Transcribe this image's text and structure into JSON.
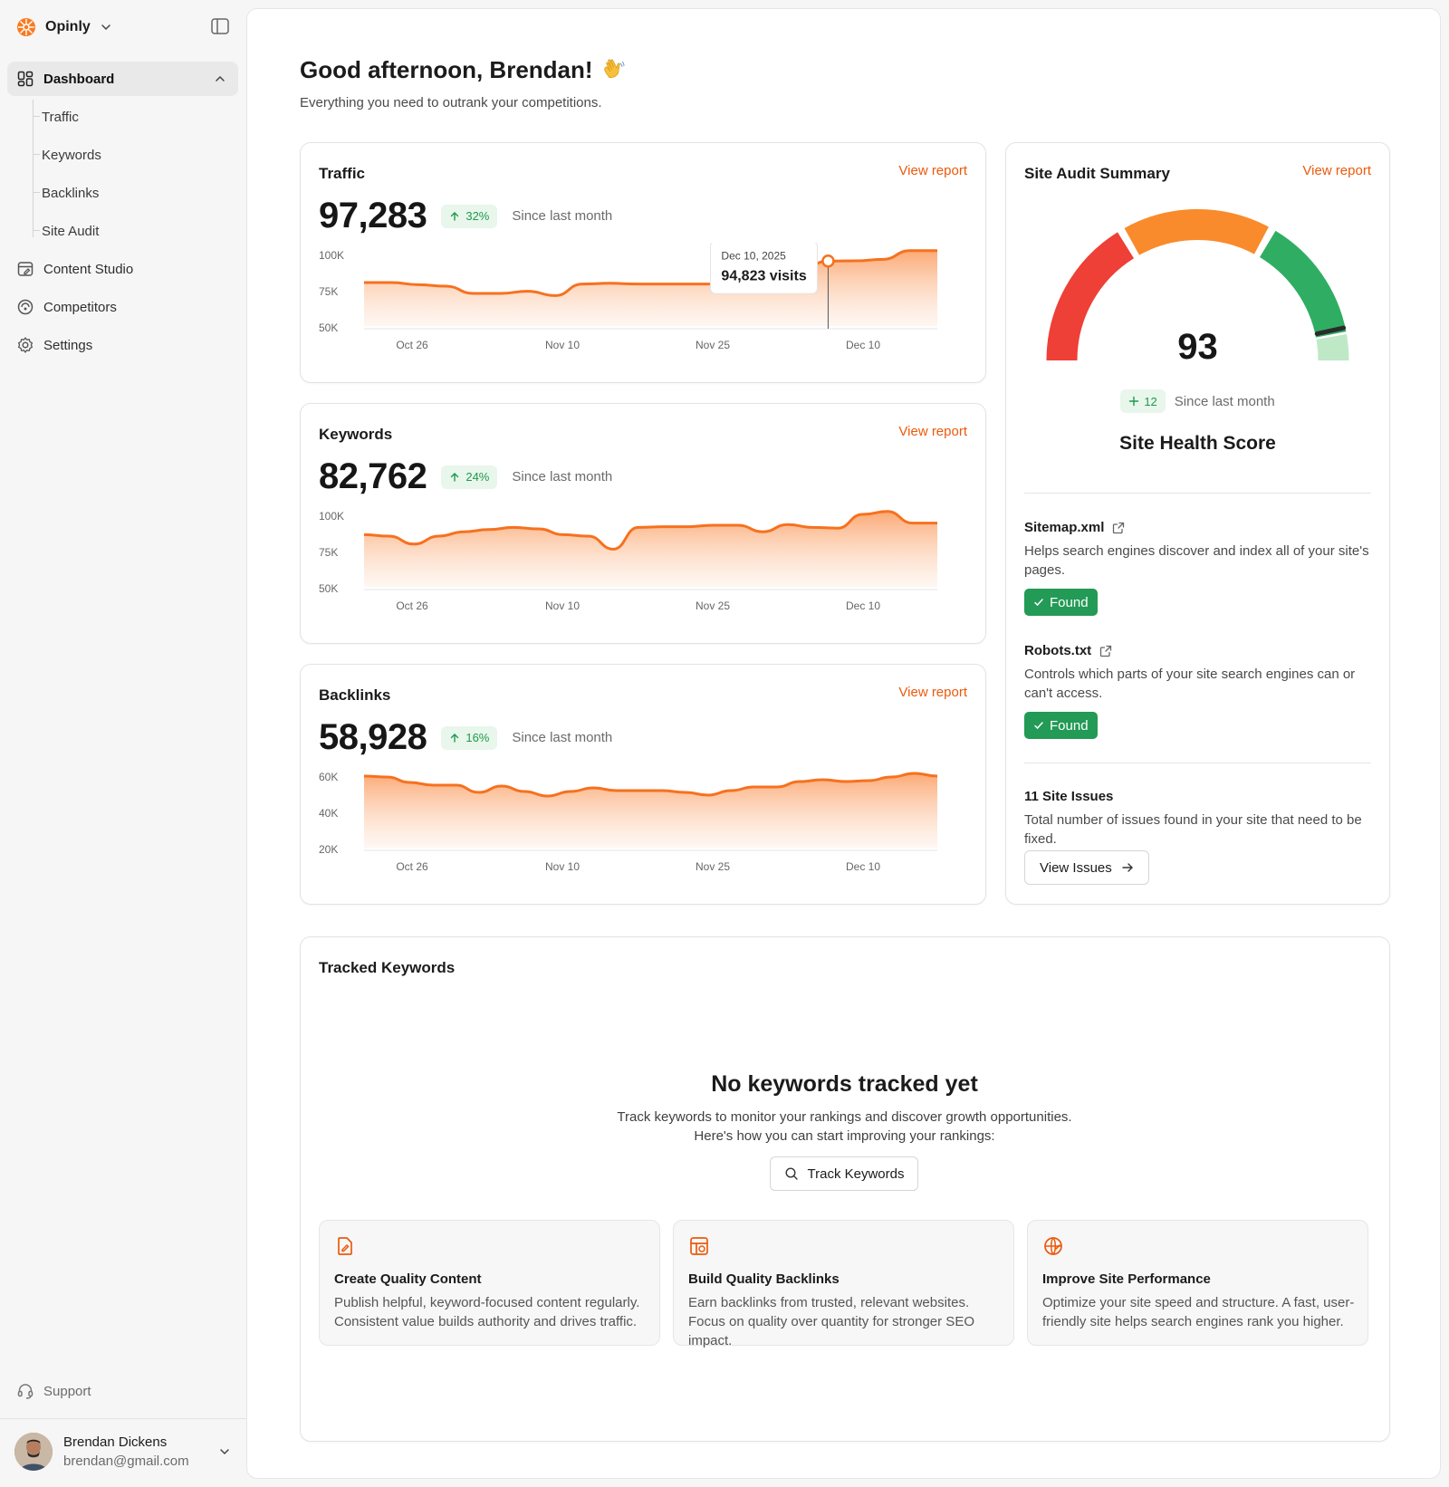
{
  "app": {
    "name": "Opinly"
  },
  "sidebar": {
    "dashboard_label": "Dashboard",
    "sub_items": [
      "Traffic",
      "Keywords",
      "Backlinks",
      "Site Audit"
    ],
    "items": [
      {
        "label": "Content Studio",
        "icon": "content-studio-icon"
      },
      {
        "label": "Competitors",
        "icon": "competitors-icon"
      },
      {
        "label": "Settings",
        "icon": "gear-icon"
      }
    ],
    "support_label": "Support"
  },
  "user": {
    "name": "Brendan Dickens",
    "email": "brendan@gmail.com"
  },
  "header": {
    "greeting": "Good afternoon, Brendan!",
    "subtitle": "Everything you need to outrank your competitions."
  },
  "metrics": {
    "view_report_label": "View report",
    "since_label": "Since last month",
    "traffic": {
      "title": "Traffic",
      "value": "97,283",
      "change": "32%"
    },
    "keywords": {
      "title": "Keywords",
      "value": "82,762",
      "change": "24%"
    },
    "backlinks": {
      "title": "Backlinks",
      "value": "58,928",
      "change": "16%"
    }
  },
  "chart_data": [
    {
      "name": "traffic",
      "type": "area",
      "x": [
        "Oct 26",
        "Nov 10",
        "Nov 25",
        "Dec 10"
      ],
      "ylim": [
        50000,
        100000
      ],
      "yticks": [
        "100K",
        "75K",
        "50K"
      ],
      "series_values": [
        80000,
        80000,
        78500,
        77500,
        72500,
        72500,
        74000,
        71000,
        79000,
        79500,
        79000,
        79000,
        79000,
        79000,
        92000,
        90500,
        89500,
        94823,
        95000,
        96000,
        102000,
        102000
      ],
      "tooltip": {
        "date": "Dec 10, 2025",
        "value": "94,823 visits"
      },
      "highlight_index": 17
    },
    {
      "name": "keywords",
      "type": "area",
      "x": [
        "Oct 26",
        "Nov 10",
        "Nov 25",
        "Dec 10"
      ],
      "ylim": [
        50000,
        100000
      ],
      "yticks": [
        "100K",
        "75K",
        "50K"
      ],
      "series_values": [
        86000,
        85000,
        79500,
        85000,
        88000,
        89500,
        91000,
        90000,
        86000,
        85000,
        76000,
        91000,
        91500,
        91500,
        92500,
        92500,
        88000,
        93000,
        91000,
        90500,
        100000,
        102000,
        94000,
        94000
      ]
    },
    {
      "name": "backlinks",
      "type": "area",
      "x": [
        "Oct 26",
        "Nov 10",
        "Nov 25",
        "Dec 10"
      ],
      "ylim": [
        20000,
        60000
      ],
      "yticks": [
        "60K",
        "40K",
        "20K"
      ],
      "series_values": [
        59500,
        59000,
        56000,
        54500,
        54500,
        50500,
        54000,
        51000,
        48500,
        51000,
        53000,
        51500,
        51500,
        51500,
        50500,
        49000,
        51500,
        53500,
        53500,
        56500,
        57500,
        56500,
        57000,
        59000,
        61000,
        59500
      ]
    }
  ],
  "audit": {
    "title": "Site Audit Summary",
    "view_report_label": "View report",
    "score": "93",
    "score_fraction": 0.93,
    "change": "12",
    "since_label": "Since last month",
    "health_label": "Site Health Score",
    "colors": {
      "red": "#ee4036",
      "orange": "#f98b2c",
      "green": "#2fae63",
      "light_green": "#bfe8c7",
      "needle": "#2b2b2b"
    },
    "items": [
      {
        "title": "Sitemap.xml",
        "desc": "Helps search engines discover and index all of your site's pages.",
        "status": "Found"
      },
      {
        "title": "Robots.txt",
        "desc": "Controls which parts of your site search engines can or can't access.",
        "status": "Found"
      }
    ],
    "issues": {
      "title": "11 Site Issues",
      "desc": "Total number of issues found in your site that need to be fixed.",
      "button": "View Issues"
    }
  },
  "tracked": {
    "title": "Tracked Keywords",
    "empty_title": "No keywords tracked yet",
    "empty_desc_line1": "Track keywords to monitor your rankings and discover growth opportunities.",
    "empty_desc_line2": "Here's how you can start improving your rankings:",
    "button": "Track Keywords",
    "tips": [
      {
        "title": "Create Quality Content",
        "desc": "Publish helpful, keyword-focused content regularly. Consistent value builds authority and drives traffic.",
        "icon": "document-edit-icon"
      },
      {
        "title": "Build Quality Backlinks",
        "desc": "Earn backlinks from trusted, relevant websites. Focus on quality over quantity for stronger SEO impact.",
        "icon": "backlinks-grid-icon"
      },
      {
        "title": "Improve Site Performance",
        "desc": "Optimize your site speed and structure. A fast, user-friendly site helps search engines rank you higher.",
        "icon": "globe-speed-icon"
      }
    ]
  },
  "colors": {
    "accent": "#ea5a0c",
    "chart_line": "#f6711f",
    "success": "#1f9a4a"
  }
}
